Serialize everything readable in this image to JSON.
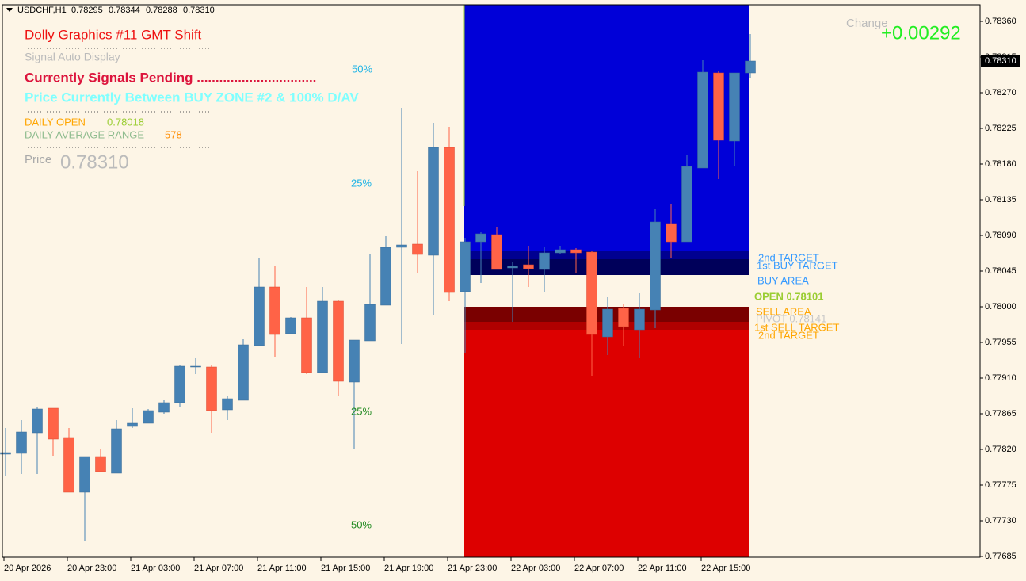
{
  "chart_data": {
    "type": "candlestick",
    "symbol": "USDCHF,H1",
    "last_price": "0.78310",
    "categories": [
      "20 Apr 2026",
      null,
      null,
      null,
      "20 Apr 23:00",
      null,
      null,
      null,
      "21 Apr 03:00",
      null,
      null,
      null,
      "21 Apr 07:00",
      null,
      null,
      null,
      "21 Apr 11:00",
      null,
      null,
      null,
      "21 Apr 15:00",
      null,
      null,
      null,
      "21 Apr 19:00",
      null,
      null,
      null,
      "21 Apr 23:00",
      null,
      null,
      null,
      "22 Apr 03:00",
      null,
      null,
      null,
      "22 Apr 07:00",
      null,
      null,
      null,
      "22 Apr 11:00",
      null,
      null,
      null,
      "22 Apr 15:00",
      null,
      null,
      null
    ],
    "open": [
      0.77814,
      0.77815,
      0.77841,
      0.77872,
      0.77835,
      0.77766,
      0.77811,
      0.7779,
      0.77849,
      0.77853,
      0.77867,
      0.77879,
      0.77925,
      0.77924,
      0.7787,
      0.77882,
      0.77951,
      0.78025,
      0.77966,
      0.77986,
      0.77917,
      0.78007,
      0.77905,
      0.77957,
      0.78002,
      0.78075,
      0.78079,
      0.78065,
      0.78201,
      0.78019,
      0.78082,
      0.78091,
      0.78049,
      0.78053,
      0.78047,
      0.78068,
      0.78072,
      0.78069,
      0.77962,
      0.77998,
      0.77971,
      0.77996,
      0.78105,
      0.78082,
      0.78175,
      0.78295,
      0.78209,
      0.78295
    ],
    "high": [
      0.77847,
      0.77857,
      0.77874,
      0.77872,
      0.77847,
      0.77811,
      0.77821,
      0.77857,
      0.77872,
      0.77871,
      0.77882,
      0.77927,
      0.77935,
      0.77926,
      0.77887,
      0.77959,
      0.78061,
      0.78052,
      0.77987,
      0.78025,
      0.78025,
      0.78009,
      0.77958,
      0.78067,
      0.78089,
      0.78251,
      0.78171,
      0.78232,
      0.78227,
      0.78087,
      0.78094,
      0.781,
      0.78057,
      0.78077,
      0.78075,
      0.78077,
      0.78074,
      0.7807,
      0.78012,
      0.78004,
      0.78017,
      0.78123,
      0.78129,
      0.78192,
      0.78311,
      0.78297,
      0.78295,
      0.78344
    ],
    "low": [
      0.77787,
      0.77789,
      0.77789,
      0.77812,
      0.77766,
      0.77705,
      0.77792,
      0.7779,
      0.77847,
      0.77853,
      0.77865,
      0.77874,
      0.77915,
      0.77841,
      0.77857,
      0.77882,
      0.77951,
      0.77937,
      0.77965,
      0.77915,
      0.77917,
      0.77887,
      0.7782,
      0.77957,
      0.78002,
      0.77953,
      0.78042,
      0.7799,
      0.78007,
      0.77942,
      0.7803,
      0.78047,
      0.77981,
      0.78025,
      0.78019,
      0.78067,
      0.78042,
      0.77913,
      0.77939,
      0.7795,
      0.77935,
      0.77973,
      0.78061,
      0.78082,
      0.78175,
      0.78161,
      0.78177,
      0.78288
    ],
    "close": [
      0.77816,
      0.77842,
      0.77871,
      0.77833,
      0.77766,
      0.77811,
      0.77792,
      0.77846,
      0.77853,
      0.77869,
      0.77879,
      0.77925,
      0.77925,
      0.77869,
      0.77884,
      0.77952,
      0.78025,
      0.77965,
      0.77986,
      0.77917,
      0.78007,
      0.77906,
      0.77958,
      0.78003,
      0.78075,
      0.78078,
      0.78066,
      0.78201,
      0.78018,
      0.78082,
      0.78092,
      0.78047,
      0.78051,
      0.78048,
      0.78068,
      0.78072,
      0.78068,
      0.77965,
      0.77997,
      0.77975,
      0.77997,
      0.78107,
      0.78082,
      0.78177,
      0.78296,
      0.7821,
      0.78295,
      0.7831
    ],
    "up_color": "#4682b4",
    "down_color": "#ff6347",
    "ylim": [
      0.77684,
      0.78381
    ],
    "yticks": [
      {
        "value": 0.7836,
        "label": "0.78360"
      },
      0.78315,
      {
        "value": 0.7827,
        "label": "0.78270"
      },
      0.78225,
      {
        "value": 0.7818,
        "label": "0.78180"
      },
      0.78135,
      {
        "value": 0.7809,
        "label": "0.78090"
      },
      0.78045,
      {
        "value": 0.78,
        "label": "0.78000"
      },
      0.77955,
      {
        "value": 0.7791,
        "label": "0.77910"
      },
      0.77865,
      {
        "value": 0.7782,
        "label": "0.77820"
      },
      0.77775,
      {
        "value": 0.7773,
        "label": "0.77730"
      },
      0.77685
    ],
    "zones": [
      {
        "top": 0.78381,
        "bottom": 0.7807,
        "color": "#0000d8"
      },
      {
        "top": 0.7807,
        "bottom": 0.7806,
        "color": "#000090"
      },
      {
        "top": 0.7806,
        "bottom": 0.7804,
        "color": "#00005a"
      },
      {
        "top": 0.78,
        "bottom": 0.77981,
        "color": "#7a0000"
      },
      {
        "top": 0.77981,
        "bottom": 0.77971,
        "color": "#b00000"
      },
      {
        "top": 0.77971,
        "bottom": 0.77684,
        "color": "#dd0000"
      }
    ]
  },
  "overlay": {
    "title": "Dolly Graphics #11 GMT Shift",
    "subtitle": "Signal Auto Display",
    "signal": "Currently Signals Pending ................................",
    "zone_status": "Price Currently Between BUY ZONE #2 & 100% D/AV",
    "daily_open_label": "DAILY OPEN",
    "daily_open": "0.78018",
    "dar_label": "DAILY AVERAGE RANGE",
    "dar": "578",
    "price_label": "Price",
    "change_label": "Change",
    "change": "+0.00292",
    "pct": [
      "50%",
      "25%",
      "25%",
      "50%"
    ],
    "levels": [
      "2nd TARGET",
      "1st BUY TARGET",
      "BUY AREA",
      "OPEN 0.78101",
      "SELL AREA",
      "PIVOT 0.78141",
      "1st SELL TARGET",
      "2nd TARGET"
    ]
  }
}
